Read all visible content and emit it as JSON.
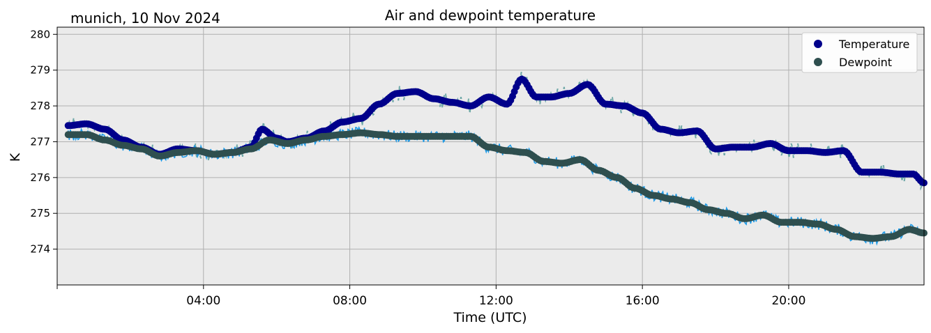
{
  "header": {
    "location_date": "munich, 10 Nov 2024",
    "title": "Air and dewpoint temperature"
  },
  "chart_data": {
    "type": "scatter",
    "title": "Air and dewpoint temperature",
    "subtitle": "munich, 10 Nov 2024",
    "xlabel": "Time (UTC)",
    "ylabel": "K",
    "xlim": [
      0,
      23.7
    ],
    "ylim": [
      273.0,
      280.2
    ],
    "x_unit": "hours",
    "x_ticks": [
      {
        "value": 4,
        "label": "04:00"
      },
      {
        "value": 8,
        "label": "08:00"
      },
      {
        "value": 12,
        "label": "12:00"
      },
      {
        "value": 16,
        "label": "16:00"
      },
      {
        "value": 20,
        "label": "20:00"
      }
    ],
    "y_ticks": [
      274,
      275,
      276,
      277,
      278,
      279,
      280
    ],
    "grid": true,
    "legend_position": "top-right",
    "background_color": "#ebebeb",
    "series": [
      {
        "name": "Temperature",
        "color": "#00008b",
        "raw_color": "#6fa8a8",
        "x": [
          0.3,
          0.8,
          1.3,
          1.8,
          2.3,
          2.8,
          3.3,
          3.8,
          4.3,
          4.8,
          5.3,
          5.6,
          6.0,
          6.3,
          6.8,
          7.3,
          7.8,
          8.3,
          8.8,
          9.3,
          9.8,
          10.3,
          10.8,
          11.3,
          11.8,
          12.3,
          12.7,
          13.1,
          13.5,
          14.0,
          14.5,
          15.0,
          15.5,
          16.0,
          16.5,
          17.0,
          17.5,
          18.0,
          18.5,
          19.0,
          19.5,
          20.0,
          20.5,
          21.0,
          21.5,
          22.0,
          22.5,
          23.0,
          23.4,
          23.7
        ],
        "y": [
          277.45,
          277.5,
          277.35,
          277.05,
          276.85,
          276.65,
          276.8,
          276.75,
          276.65,
          276.7,
          276.85,
          277.35,
          277.1,
          277.0,
          277.1,
          277.3,
          277.55,
          277.65,
          278.05,
          278.35,
          278.4,
          278.2,
          278.1,
          278.0,
          278.25,
          278.05,
          278.75,
          278.25,
          278.25,
          278.35,
          278.6,
          278.05,
          278.0,
          277.8,
          277.35,
          277.25,
          277.3,
          276.8,
          276.85,
          276.85,
          276.95,
          276.75,
          276.75,
          276.7,
          276.75,
          276.15,
          276.15,
          276.1,
          276.1,
          275.85
        ]
      },
      {
        "name": "Dewpoint",
        "color": "#2f4f4f",
        "raw_color": "#1e9be8",
        "x": [
          0.3,
          0.8,
          1.3,
          1.8,
          2.3,
          2.8,
          3.3,
          3.8,
          4.3,
          4.8,
          5.3,
          5.8,
          6.3,
          6.8,
          7.3,
          7.8,
          8.3,
          8.8,
          9.3,
          9.8,
          10.3,
          10.8,
          11.3,
          11.8,
          12.3,
          12.8,
          13.3,
          13.8,
          14.3,
          14.8,
          15.3,
          15.8,
          16.3,
          16.8,
          17.3,
          17.8,
          18.3,
          18.8,
          19.3,
          19.8,
          20.3,
          20.8,
          21.3,
          21.8,
          22.3,
          22.8,
          23.3,
          23.7
        ],
        "y": [
          277.2,
          277.2,
          277.05,
          276.9,
          276.8,
          276.6,
          276.7,
          276.75,
          276.65,
          276.7,
          276.8,
          277.05,
          276.95,
          277.05,
          277.15,
          277.2,
          277.25,
          277.2,
          277.15,
          277.15,
          277.15,
          277.15,
          277.15,
          276.85,
          276.75,
          276.7,
          276.45,
          276.4,
          276.5,
          276.2,
          276.0,
          275.7,
          275.5,
          275.4,
          275.3,
          275.1,
          275.0,
          274.85,
          274.95,
          274.75,
          274.75,
          274.7,
          274.55,
          274.35,
          274.3,
          274.35,
          274.55,
          274.45
        ]
      }
    ]
  }
}
